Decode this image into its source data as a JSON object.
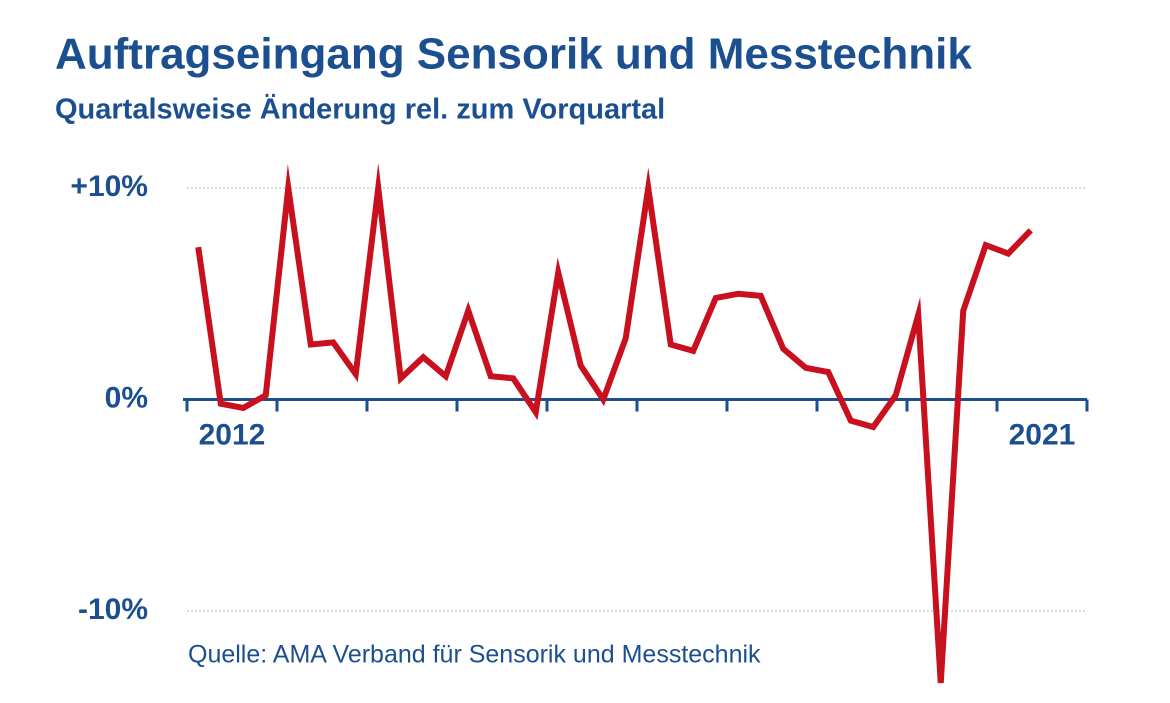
{
  "chart_data": {
    "type": "line",
    "title": "Auftragseingang Sensorik und Messtechnik",
    "subtitle": "Quartalsweise Änderung rel. zum Vorquartal",
    "source": "Quelle: AMA Verband für Sensorik und Messtechnik",
    "x": [
      2012.125,
      2012.375,
      2012.625,
      2012.875,
      2013.125,
      2013.375,
      2013.625,
      2013.875,
      2014.125,
      2014.375,
      2014.625,
      2014.875,
      2015.125,
      2015.375,
      2015.625,
      2015.875,
      2016.125,
      2016.375,
      2016.625,
      2016.875,
      2017.125,
      2017.375,
      2017.625,
      2017.875,
      2018.125,
      2018.375,
      2018.625,
      2018.875,
      2019.125,
      2019.375,
      2019.625,
      2019.875,
      2020.125,
      2020.375,
      2020.625,
      2020.875,
      2021.125,
      2021.375
    ],
    "series": [
      {
        "color": "#c8101e",
        "values": [
          7.2,
          -0.2,
          -0.4,
          0.2,
          10.0,
          2.6,
          2.7,
          1.2,
          10.0,
          1.0,
          2.0,
          1.1,
          4.2,
          1.1,
          1.0,
          -0.6,
          6.0,
          1.6,
          0.0,
          2.9,
          10.0,
          2.6,
          2.3,
          4.8,
          5.0,
          4.9,
          2.4,
          1.5,
          1.3,
          -1.0,
          -1.3,
          0.2,
          4.0,
          -13.4,
          4.2,
          7.3,
          6.9,
          8.0
        ]
      }
    ],
    "xlim": [
      2012,
      2022
    ],
    "xticks": [
      2012,
      2013,
      2014,
      2015,
      2016,
      2017,
      2018,
      2019,
      2020,
      2021,
      2022
    ],
    "year_labels": [
      {
        "value": 2012.5,
        "label": "2012"
      },
      {
        "value": 2021.5,
        "label": "2021"
      }
    ],
    "ylim": [
      -10,
      10
    ],
    "yticks": [
      {
        "value": -10,
        "label": "-10%"
      },
      {
        "value": 0,
        "label": "0%"
      },
      {
        "value": 10,
        "label": "+10%"
      }
    ],
    "grid": true
  }
}
